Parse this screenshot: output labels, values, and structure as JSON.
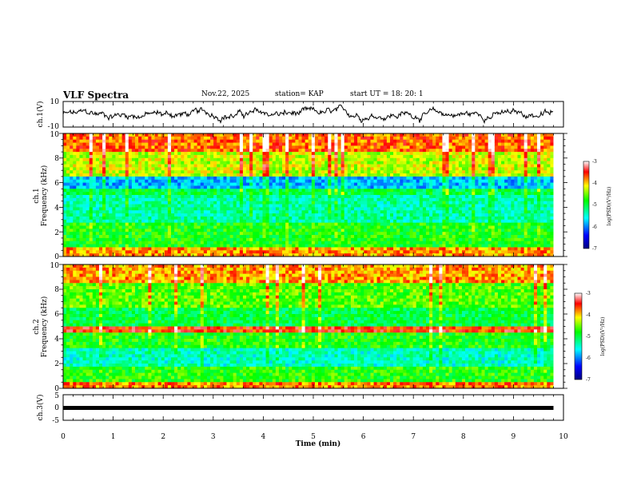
{
  "header": {
    "title": "VLF Spectra",
    "date": "Nov.22, 2025",
    "station": "station= KAP",
    "start": "start  UT  =   18: 20: 1"
  },
  "chart_data": [
    {
      "type": "line",
      "name": "ch1-waveform",
      "ylabel": "ch.1(V)",
      "ylim": [
        -10,
        10
      ],
      "yticks": [
        "10",
        "-10"
      ],
      "xlim": [
        0,
        10
      ],
      "data_extent_min": 9.8,
      "description_values": "noisy waveform around -2 to 4 V"
    },
    {
      "type": "heatmap",
      "name": "ch1-spectrogram",
      "ylabel_line1": "ch.1",
      "ylabel_line2": "Frequency (kHz)",
      "ylim": [
        0,
        10
      ],
      "yticks": [
        "0",
        "2",
        "4",
        "6",
        "8",
        "10"
      ],
      "xlim": [
        0,
        10
      ],
      "colorbar_label": "log(PSD)(V²/Hz)",
      "colorbar_ticks": [
        "-3",
        "-4",
        "-5",
        "-6",
        "-7"
      ],
      "zlim": [
        -7,
        -3
      ]
    },
    {
      "type": "heatmap",
      "name": "ch2-spectrogram",
      "ylabel_line1": "ch.2",
      "ylabel_line2": "Frequency (kHz)",
      "ylim": [
        0,
        10
      ],
      "yticks": [
        "0",
        "2",
        "4",
        "6",
        "8",
        "10"
      ],
      "xlim": [
        0,
        10
      ],
      "colorbar_label": "log(PSD)(V²/Hz)",
      "colorbar_ticks": [
        "-3",
        "-4",
        "-5",
        "-6",
        "-7"
      ],
      "zlim": [
        -7,
        -3
      ]
    },
    {
      "type": "line",
      "name": "ch3-waveform",
      "ylabel": "ch.3(V)",
      "ylim": [
        -5,
        5
      ],
      "yticks": [
        "5",
        "0",
        "-5"
      ],
      "xlim": [
        0,
        10
      ],
      "level": -0.3
    }
  ],
  "xaxis": {
    "label": "Time (min)",
    "ticks": [
      "0",
      "1",
      "2",
      "3",
      "4",
      "5",
      "6",
      "7",
      "8",
      "9",
      "10"
    ]
  }
}
